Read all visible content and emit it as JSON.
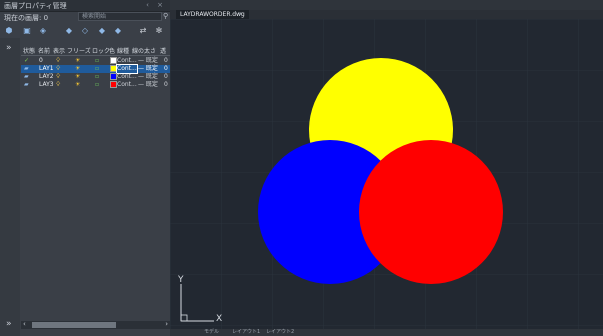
{
  "panel": {
    "title": "画層プロパティ管理",
    "window_controls": "‹ ×",
    "current_layer_label": "現在の画層: 0",
    "search_placeholder": "検索開始"
  },
  "layer_table": {
    "headers": [
      "状態",
      "名前",
      "表示",
      "フリーズ",
      "ロック",
      "色",
      "線種",
      "線の太さ",
      "透"
    ],
    "rows": [
      {
        "name": "0",
        "color_hex": "#ffffff",
        "linetype": "Cont...",
        "lineweight": "— 既定",
        "selected": false,
        "current": true
      },
      {
        "name": "LAY1",
        "color_hex": "#ffff00",
        "linetype": "Cont...",
        "lineweight": "— 既定",
        "selected": true,
        "current": false
      },
      {
        "name": "LAY2",
        "color_hex": "#0000ff",
        "linetype": "Cont...",
        "lineweight": "— 既定",
        "selected": false,
        "current": false
      },
      {
        "name": "LAY3",
        "color_hex": "#ff0000",
        "linetype": "Cont...",
        "lineweight": "— 既定",
        "selected": false,
        "current": false
      }
    ]
  },
  "drawing": {
    "tab_label": "LAYDRAWORDER.dwg",
    "tab_close": "×",
    "ucs_x": "X",
    "ucs_y": "Y",
    "circle_colors": {
      "yellow": "#ffff00",
      "blue": "#0000ff",
      "red": "#ff0000"
    }
  },
  "status_bar": {
    "items": [
      "モデル",
      "レイアウト1",
      "レイアウト2"
    ]
  }
}
